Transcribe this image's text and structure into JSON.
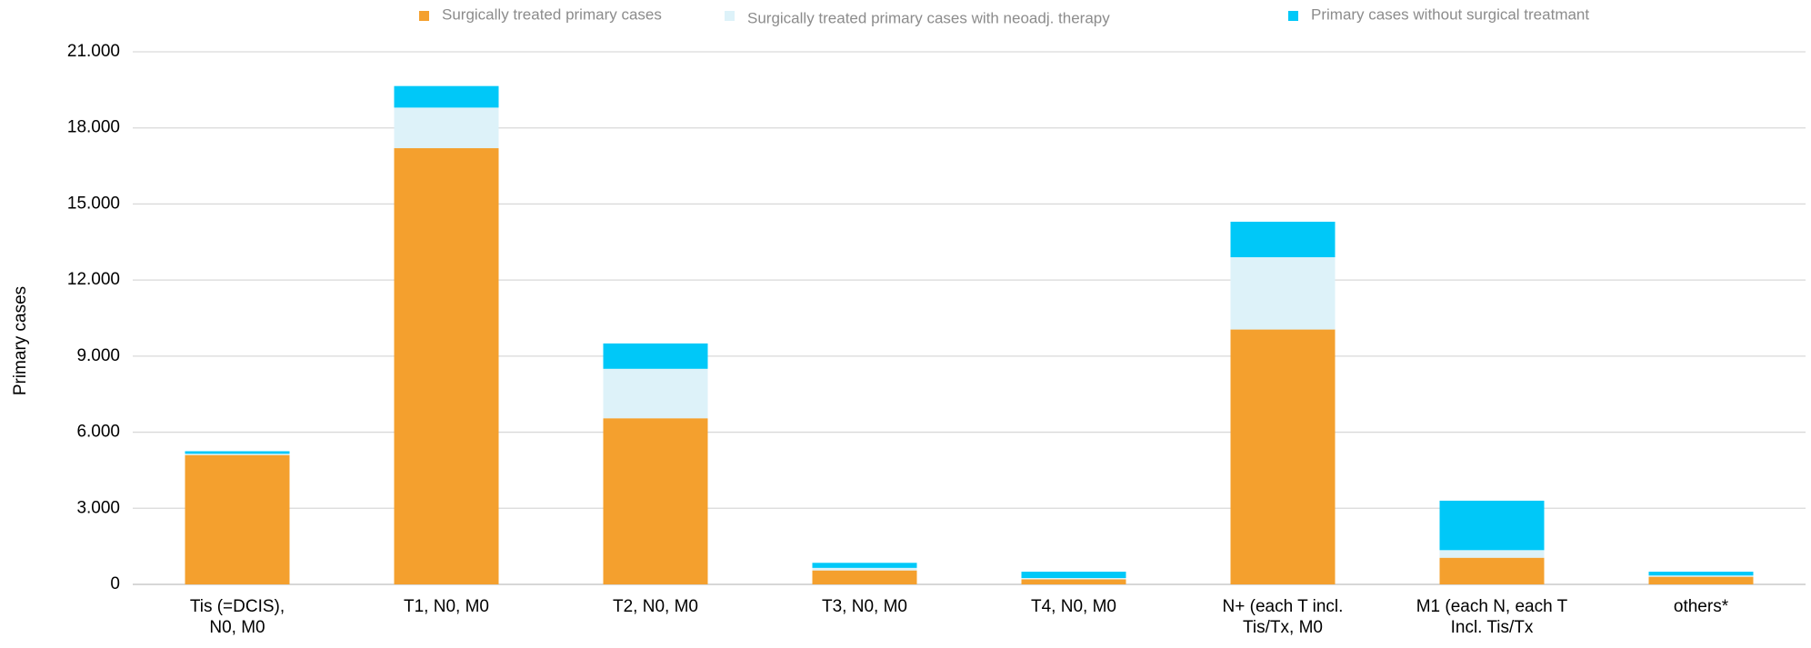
{
  "chart_data": {
    "type": "stacked_bar",
    "y_label": "Primary cases",
    "categories": [
      "Tis (=DCIS),\nN0, M0",
      "T1, N0, M0",
      "T2, N0, M0",
      "T3, N0, M0",
      "T4, N0, M0",
      "N+ (each T incl.\nTis/Tx, M0",
      "M1 (each N, each T\nIncl. Tis/Tx",
      "others*"
    ],
    "series": [
      {
        "name": "Surgically treated primary cases",
        "color": "#f4a02e",
        "values": [
          5100,
          17200,
          6550,
          550,
          200,
          10050,
          1050,
          300
        ]
      },
      {
        "name": "Surgically treated primary cases with neoadj. therapy",
        "color": "#ddf2f9",
        "values": [
          50,
          1600,
          1950,
          100,
          50,
          2850,
          300,
          50
        ]
      },
      {
        "name": "Primary cases without surgical treatmant",
        "color": "#00c8f8",
        "values": [
          100,
          850,
          1000,
          200,
          250,
          1400,
          1950,
          150
        ]
      }
    ],
    "ylim": [
      0,
      21000
    ],
    "yticks": [
      0,
      {
        "value": 3000,
        "label": "3.000"
      },
      {
        "value": 6000,
        "label": "6.000"
      },
      {
        "value": 9000,
        "label": "9.000"
      },
      {
        "value": 12000,
        "label": "12.000"
      },
      {
        "value": 15000,
        "label": "15.000"
      },
      {
        "value": 18000,
        "label": "18.000"
      },
      {
        "value": 21000,
        "label": "21.000"
      }
    ],
    "grid": true
  }
}
